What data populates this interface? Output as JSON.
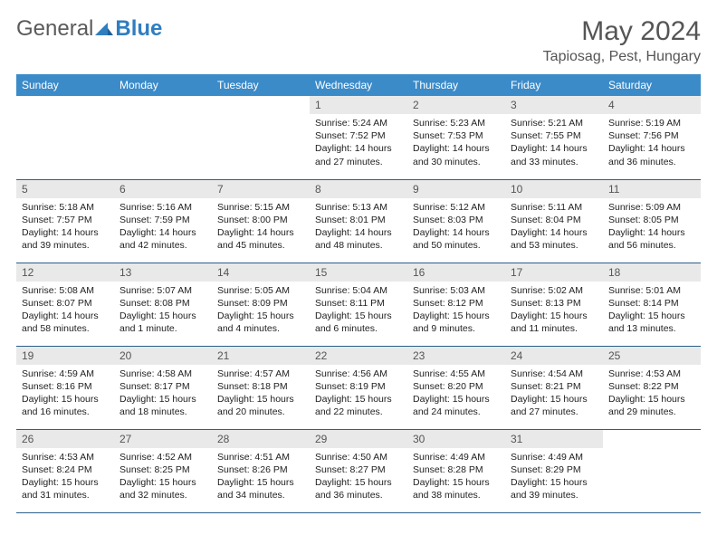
{
  "brand": {
    "part1": "General",
    "part2": "Blue"
  },
  "title": "May 2024",
  "location": "Tapiosag, Pest, Hungary",
  "colors": {
    "header_bg": "#3b8bc9",
    "header_text": "#ffffff",
    "daynum_bg": "#e9e9e9",
    "row_border": "#2c5f8a",
    "logo_gray": "#5a5a5a",
    "logo_blue": "#2f7ec0"
  },
  "weekdays": [
    "Sunday",
    "Monday",
    "Tuesday",
    "Wednesday",
    "Thursday",
    "Friday",
    "Saturday"
  ],
  "weeks": [
    [
      {
        "empty": true
      },
      {
        "empty": true
      },
      {
        "empty": true
      },
      {
        "day": "1",
        "sunrise": "Sunrise: 5:24 AM",
        "sunset": "Sunset: 7:52 PM",
        "daylight": "Daylight: 14 hours and 27 minutes."
      },
      {
        "day": "2",
        "sunrise": "Sunrise: 5:23 AM",
        "sunset": "Sunset: 7:53 PM",
        "daylight": "Daylight: 14 hours and 30 minutes."
      },
      {
        "day": "3",
        "sunrise": "Sunrise: 5:21 AM",
        "sunset": "Sunset: 7:55 PM",
        "daylight": "Daylight: 14 hours and 33 minutes."
      },
      {
        "day": "4",
        "sunrise": "Sunrise: 5:19 AM",
        "sunset": "Sunset: 7:56 PM",
        "daylight": "Daylight: 14 hours and 36 minutes."
      }
    ],
    [
      {
        "day": "5",
        "sunrise": "Sunrise: 5:18 AM",
        "sunset": "Sunset: 7:57 PM",
        "daylight": "Daylight: 14 hours and 39 minutes."
      },
      {
        "day": "6",
        "sunrise": "Sunrise: 5:16 AM",
        "sunset": "Sunset: 7:59 PM",
        "daylight": "Daylight: 14 hours and 42 minutes."
      },
      {
        "day": "7",
        "sunrise": "Sunrise: 5:15 AM",
        "sunset": "Sunset: 8:00 PM",
        "daylight": "Daylight: 14 hours and 45 minutes."
      },
      {
        "day": "8",
        "sunrise": "Sunrise: 5:13 AM",
        "sunset": "Sunset: 8:01 PM",
        "daylight": "Daylight: 14 hours and 48 minutes."
      },
      {
        "day": "9",
        "sunrise": "Sunrise: 5:12 AM",
        "sunset": "Sunset: 8:03 PM",
        "daylight": "Daylight: 14 hours and 50 minutes."
      },
      {
        "day": "10",
        "sunrise": "Sunrise: 5:11 AM",
        "sunset": "Sunset: 8:04 PM",
        "daylight": "Daylight: 14 hours and 53 minutes."
      },
      {
        "day": "11",
        "sunrise": "Sunrise: 5:09 AM",
        "sunset": "Sunset: 8:05 PM",
        "daylight": "Daylight: 14 hours and 56 minutes."
      }
    ],
    [
      {
        "day": "12",
        "sunrise": "Sunrise: 5:08 AM",
        "sunset": "Sunset: 8:07 PM",
        "daylight": "Daylight: 14 hours and 58 minutes."
      },
      {
        "day": "13",
        "sunrise": "Sunrise: 5:07 AM",
        "sunset": "Sunset: 8:08 PM",
        "daylight": "Daylight: 15 hours and 1 minute."
      },
      {
        "day": "14",
        "sunrise": "Sunrise: 5:05 AM",
        "sunset": "Sunset: 8:09 PM",
        "daylight": "Daylight: 15 hours and 4 minutes."
      },
      {
        "day": "15",
        "sunrise": "Sunrise: 5:04 AM",
        "sunset": "Sunset: 8:11 PM",
        "daylight": "Daylight: 15 hours and 6 minutes."
      },
      {
        "day": "16",
        "sunrise": "Sunrise: 5:03 AM",
        "sunset": "Sunset: 8:12 PM",
        "daylight": "Daylight: 15 hours and 9 minutes."
      },
      {
        "day": "17",
        "sunrise": "Sunrise: 5:02 AM",
        "sunset": "Sunset: 8:13 PM",
        "daylight": "Daylight: 15 hours and 11 minutes."
      },
      {
        "day": "18",
        "sunrise": "Sunrise: 5:01 AM",
        "sunset": "Sunset: 8:14 PM",
        "daylight": "Daylight: 15 hours and 13 minutes."
      }
    ],
    [
      {
        "day": "19",
        "sunrise": "Sunrise: 4:59 AM",
        "sunset": "Sunset: 8:16 PM",
        "daylight": "Daylight: 15 hours and 16 minutes."
      },
      {
        "day": "20",
        "sunrise": "Sunrise: 4:58 AM",
        "sunset": "Sunset: 8:17 PM",
        "daylight": "Daylight: 15 hours and 18 minutes."
      },
      {
        "day": "21",
        "sunrise": "Sunrise: 4:57 AM",
        "sunset": "Sunset: 8:18 PM",
        "daylight": "Daylight: 15 hours and 20 minutes."
      },
      {
        "day": "22",
        "sunrise": "Sunrise: 4:56 AM",
        "sunset": "Sunset: 8:19 PM",
        "daylight": "Daylight: 15 hours and 22 minutes."
      },
      {
        "day": "23",
        "sunrise": "Sunrise: 4:55 AM",
        "sunset": "Sunset: 8:20 PM",
        "daylight": "Daylight: 15 hours and 24 minutes."
      },
      {
        "day": "24",
        "sunrise": "Sunrise: 4:54 AM",
        "sunset": "Sunset: 8:21 PM",
        "daylight": "Daylight: 15 hours and 27 minutes."
      },
      {
        "day": "25",
        "sunrise": "Sunrise: 4:53 AM",
        "sunset": "Sunset: 8:22 PM",
        "daylight": "Daylight: 15 hours and 29 minutes."
      }
    ],
    [
      {
        "day": "26",
        "sunrise": "Sunrise: 4:53 AM",
        "sunset": "Sunset: 8:24 PM",
        "daylight": "Daylight: 15 hours and 31 minutes."
      },
      {
        "day": "27",
        "sunrise": "Sunrise: 4:52 AM",
        "sunset": "Sunset: 8:25 PM",
        "daylight": "Daylight: 15 hours and 32 minutes."
      },
      {
        "day": "28",
        "sunrise": "Sunrise: 4:51 AM",
        "sunset": "Sunset: 8:26 PM",
        "daylight": "Daylight: 15 hours and 34 minutes."
      },
      {
        "day": "29",
        "sunrise": "Sunrise: 4:50 AM",
        "sunset": "Sunset: 8:27 PM",
        "daylight": "Daylight: 15 hours and 36 minutes."
      },
      {
        "day": "30",
        "sunrise": "Sunrise: 4:49 AM",
        "sunset": "Sunset: 8:28 PM",
        "daylight": "Daylight: 15 hours and 38 minutes."
      },
      {
        "day": "31",
        "sunrise": "Sunrise: 4:49 AM",
        "sunset": "Sunset: 8:29 PM",
        "daylight": "Daylight: 15 hours and 39 minutes."
      },
      {
        "empty": true
      }
    ]
  ]
}
